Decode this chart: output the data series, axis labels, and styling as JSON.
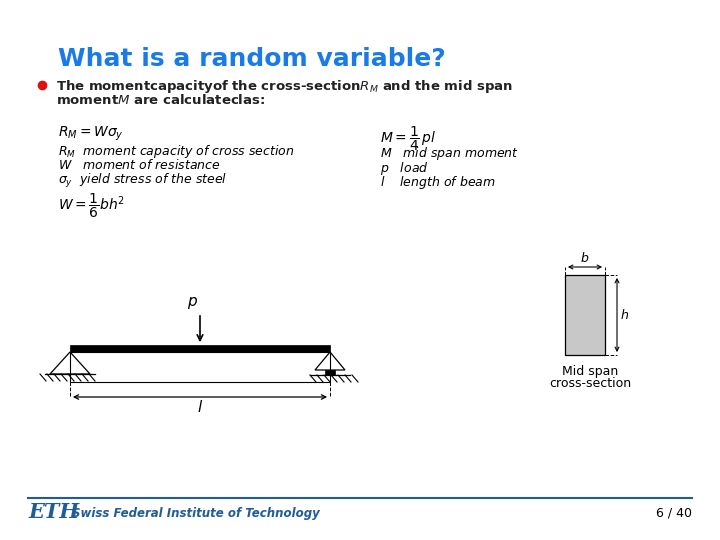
{
  "title": "What is a random variable?",
  "title_color": "#1A7AE8",
  "background_color": "#ffffff",
  "slide_number": "6 / 40",
  "eth_text": "Swiss Federal Institute of Technology",
  "title_fontsize": 18,
  "body_fontsize": 9.5,
  "eq_fontsize": 10,
  "footer_color": "#1F5C99"
}
